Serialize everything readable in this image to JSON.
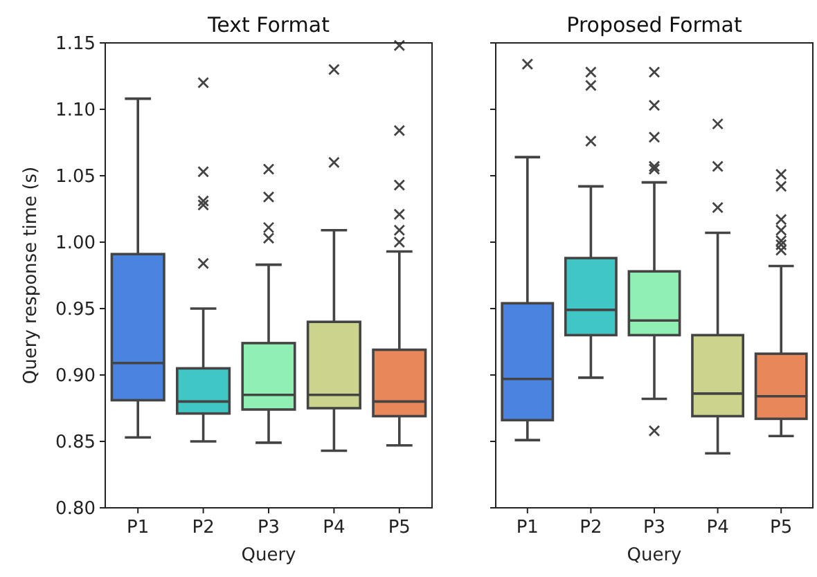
{
  "chart_data": [
    {
      "type": "box",
      "title": "Text Format",
      "xlabel": "Query",
      "ylabel": "Query response time (s)",
      "categories": [
        "P1",
        "P2",
        "P3",
        "P4",
        "P5"
      ],
      "colors": [
        "#4a84e0",
        "#41c6c6",
        "#90f0b4",
        "#cbd38c",
        "#e8885a"
      ],
      "ylim": [
        0.8,
        1.15
      ],
      "yticks": [
        {
          "value": 0.8,
          "label": "0.80"
        },
        {
          "value": 0.85,
          "label": "0.85"
        },
        {
          "value": 0.9,
          "label": "0.90"
        },
        {
          "value": 0.95,
          "label": "0.95"
        },
        {
          "value": 1.0,
          "label": "1.00"
        },
        {
          "value": 1.05,
          "label": "1.05"
        },
        {
          "value": 1.1,
          "label": "1.10"
        },
        {
          "value": 1.15,
          "label": "1.15"
        }
      ],
      "marker": "cross",
      "boxes": [
        {
          "low": 0.853,
          "q1": 0.881,
          "median": 0.909,
          "q3": 0.991,
          "high": 1.108
        },
        {
          "low": 0.85,
          "q1": 0.871,
          "median": 0.88,
          "q3": 0.905,
          "high": 0.95,
          "outliers": [
            0.984,
            1.028,
            1.031,
            1.053,
            1.12
          ]
        },
        {
          "low": 0.849,
          "q1": 0.874,
          "median": 0.885,
          "q3": 0.924,
          "high": 0.983,
          "outliers": [
            1.003,
            1.011,
            1.034,
            1.055
          ]
        },
        {
          "low": 0.843,
          "q1": 0.875,
          "median": 0.885,
          "q3": 0.94,
          "high": 1.009,
          "outliers": [
            1.06,
            1.13
          ]
        },
        {
          "low": 0.847,
          "q1": 0.869,
          "median": 0.88,
          "q3": 0.919,
          "high": 0.993,
          "outliers": [
            1.0,
            1.009,
            1.021,
            1.043,
            1.084,
            1.148
          ]
        }
      ]
    },
    {
      "type": "box",
      "title": "Proposed Format",
      "xlabel": "Query",
      "categories": [
        "P1",
        "P2",
        "P3",
        "P4",
        "P5"
      ],
      "colors": [
        "#4a84e0",
        "#41c6c6",
        "#90f0b4",
        "#cbd38c",
        "#e8885a"
      ],
      "ylim": [
        0.8,
        1.15
      ],
      "yticks": [
        0.8,
        0.85,
        0.9,
        0.95,
        1.0,
        1.05,
        1.1,
        1.15
      ],
      "tick_labels": "x",
      "marker": "cross",
      "boxes": [
        {
          "low": 0.851,
          "q1": 0.866,
          "median": 0.897,
          "q3": 0.954,
          "high": 1.064,
          "outliers": [
            1.134
          ]
        },
        {
          "low": 0.898,
          "q1": 0.93,
          "median": 0.949,
          "q3": 0.988,
          "high": 1.042,
          "outliers": [
            1.076,
            1.118,
            1.128
          ]
        },
        {
          "low": 0.882,
          "q1": 0.93,
          "median": 0.941,
          "q3": 0.978,
          "high": 1.045,
          "outliers": [
            0.858,
            1.055,
            1.057,
            1.079,
            1.103,
            1.128
          ]
        },
        {
          "low": 0.841,
          "q1": 0.869,
          "median": 0.886,
          "q3": 0.93,
          "high": 1.007,
          "outliers": [
            1.026,
            1.057,
            1.089
          ]
        },
        {
          "low": 0.854,
          "q1": 0.867,
          "median": 0.884,
          "q3": 0.916,
          "high": 0.982,
          "outliers": [
            0.994,
            0.998,
            1.001,
            1.009,
            1.017,
            1.042,
            1.051
          ]
        }
      ]
    }
  ]
}
